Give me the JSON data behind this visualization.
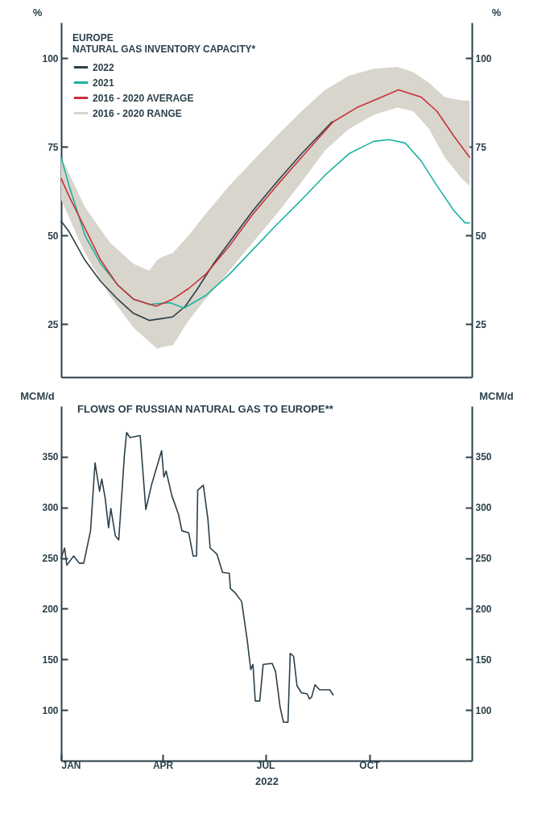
{
  "chart_data": [
    {
      "type": "line",
      "legend_title": "EUROPE\nNATURAL GAS INVENTORY CAPACITY*",
      "ylabel": "%",
      "y2label": "%",
      "xlim": [
        "2022-01-01",
        "2022-12-31"
      ],
      "ylim": [
        10,
        110
      ],
      "yticks": [
        25,
        50,
        75,
        100
      ],
      "y2lim": [
        10,
        110
      ],
      "y2ticks": [
        25,
        50,
        75,
        100
      ],
      "tick_labels": "y",
      "legend": "top left",
      "grid": false,
      "marker": "none",
      "line_style": "solid",
      "series": [
        {
          "name": "2022",
          "color": "#2b3f4a",
          "type": "line",
          "x": [
            "2022-01-01",
            "2022-01-08",
            "2022-01-22",
            "2022-02-05",
            "2022-02-20",
            "2022-03-06",
            "2022-03-20",
            "2022-03-31",
            "2022-04-10",
            "2022-04-21",
            "2022-05-02",
            "2022-05-16",
            "2022-05-30",
            "2022-06-20",
            "2022-07-11",
            "2022-08-02",
            "2022-08-29"
          ],
          "values": [
            54,
            51,
            43,
            37,
            32,
            28,
            26,
            26.5,
            27,
            30,
            35,
            42,
            48,
            57,
            65,
            73,
            82
          ]
        },
        {
          "name": "2021",
          "color": "#1bb39e",
          "type": "line",
          "x": [
            "2022-01-01",
            "2022-01-08",
            "2022-01-15",
            "2022-01-22",
            "2022-02-05",
            "2022-02-20",
            "2022-03-06",
            "2022-03-20",
            "2022-04-07",
            "2022-04-20",
            "2022-05-09",
            "2022-05-30",
            "2022-06-20",
            "2022-07-11",
            "2022-08-02",
            "2022-08-23",
            "2022-09-13",
            "2022-10-05",
            "2022-10-19",
            "2022-11-02",
            "2022-11-16",
            "2022-11-30",
            "2022-12-15",
            "2022-12-25",
            "2022-12-29"
          ],
          "values": [
            72,
            64,
            57,
            50,
            42,
            36,
            32,
            30.5,
            31,
            29.5,
            33,
            39,
            46,
            53,
            60,
            67,
            73,
            76.5,
            77,
            76,
            71,
            64,
            57,
            53.5,
            53.5
          ]
        },
        {
          "name": "2016 - 2020 AVERAGE",
          "color": "#c8323a",
          "type": "line",
          "x": [
            "2022-01-01",
            "2022-01-08",
            "2022-01-22",
            "2022-02-05",
            "2022-02-20",
            "2022-03-06",
            "2022-03-26",
            "2022-04-10",
            "2022-04-24",
            "2022-05-09",
            "2022-05-30",
            "2022-06-20",
            "2022-07-11",
            "2022-08-02",
            "2022-08-30",
            "2022-09-20",
            "2022-10-12",
            "2022-10-27",
            "2022-11-16",
            "2022-11-30",
            "2022-12-15",
            "2022-12-29"
          ],
          "values": [
            66,
            61,
            52,
            43,
            36,
            32,
            30,
            32,
            35,
            39,
            47,
            56,
            64,
            72,
            82,
            86,
            89,
            91,
            89,
            85,
            78,
            72
          ]
        },
        {
          "name": "2016 - 2020 RANGE",
          "color": "#d8d5cc",
          "type": "area",
          "values": [
            null,
            null,
            null,
            null,
            null,
            null,
            null,
            null,
            null,
            null,
            null,
            null,
            null,
            null,
            null,
            null,
            null,
            null,
            null,
            null,
            null,
            null,
            null
          ],
          "x": [
            "2022-01-01",
            "2022-01-22",
            "2022-02-13",
            "2022-03-06",
            "2022-03-20",
            "2022-03-27",
            "2022-04-01",
            "2022-04-10",
            "2022-04-24",
            "2022-05-09",
            "2022-05-30",
            "2022-06-20",
            "2022-07-11",
            "2022-08-02",
            "2022-08-23",
            "2022-09-13",
            "2022-10-05",
            "2022-10-26",
            "2022-11-09",
            "2022-11-23",
            "2022-12-07",
            "2022-12-22",
            "2022-12-29"
          ],
          "lower": [
            60,
            45,
            33,
            24,
            20,
            18,
            18.5,
            19,
            26,
            32,
            40,
            48,
            56,
            65,
            74,
            80,
            84,
            86,
            85,
            80,
            72,
            66,
            64
          ],
          "upper": [
            72,
            58,
            48,
            42,
            40,
            43,
            44,
            45,
            50,
            56,
            64,
            71,
            78,
            85,
            91,
            95,
            97,
            97.5,
            96,
            93,
            89,
            88,
            88
          ]
        }
      ]
    },
    {
      "type": "line",
      "title": "FLOWS OF RUSSIAN NATURAL GAS TO EUROPE**",
      "ylabel": "MCM/d",
      "y2label": "MCM/d",
      "xlabel": "2022",
      "xlim": [
        "2022-01-01",
        "2022-12-31"
      ],
      "xticks": [
        {
          "value": "2022-01-01",
          "label": "JAN"
        },
        {
          "value": "2022-04-01",
          "label": "APR"
        },
        {
          "value": "2022-07-01",
          "label": "JUL"
        },
        {
          "value": "2022-10-01",
          "label": "OCT"
        }
      ],
      "ylim": [
        50,
        400
      ],
      "yticks": [
        100,
        150,
        200,
        250,
        300,
        350
      ],
      "y2lim": [
        50,
        400
      ],
      "y2ticks": [
        100,
        150,
        200,
        250,
        300,
        350
      ],
      "grid": false,
      "marker": "none",
      "line_style": "solid",
      "series": [
        {
          "color": "#2b3f4a",
          "type": "line",
          "x": [
            "2022-01-01",
            "2022-01-04",
            "2022-01-06",
            "2022-01-12",
            "2022-01-17",
            "2022-01-21",
            "2022-01-27",
            "2022-01-31",
            "2022-02-04",
            "2022-02-06",
            "2022-02-09",
            "2022-02-12",
            "2022-02-14",
            "2022-02-18",
            "2022-02-21",
            "2022-02-26",
            "2022-02-28",
            "2022-03-03",
            "2022-03-12",
            "2022-03-17",
            "2022-03-22",
            "2022-03-31",
            "2022-04-02",
            "2022-04-04",
            "2022-04-09",
            "2022-04-15",
            "2022-04-18",
            "2022-04-24",
            "2022-04-28",
            "2022-05-01",
            "2022-05-02",
            "2022-05-07",
            "2022-05-11",
            "2022-05-13",
            "2022-05-19",
            "2022-05-24",
            "2022-05-30",
            "2022-05-31",
            "2022-06-04",
            "2022-06-10",
            "2022-06-15",
            "2022-06-18",
            "2022-06-20",
            "2022-06-22",
            "2022-06-26",
            "2022-06-29",
            "2022-07-07",
            "2022-07-10",
            "2022-07-14",
            "2022-07-17",
            "2022-07-21",
            "2022-07-23",
            "2022-07-26",
            "2022-07-29",
            "2022-08-02",
            "2022-08-07",
            "2022-08-09",
            "2022-08-11",
            "2022-08-14",
            "2022-08-18",
            "2022-08-27",
            "2022-08-30"
          ],
          "values": [
            250,
            260,
            243,
            252,
            245,
            245,
            277,
            344,
            316,
            328,
            309,
            280,
            299,
            272,
            268,
            351,
            374,
            369,
            371,
            298,
            322,
            356,
            330,
            336,
            312,
            293,
            277,
            275,
            252,
            252,
            317,
            322,
            289,
            260,
            254,
            236,
            235,
            220,
            216,
            207,
            168,
            140,
            145,
            109,
            109,
            145,
            146,
            138,
            103,
            88,
            88,
            156,
            153,
            124,
            117,
            116,
            111,
            113,
            125,
            120,
            120,
            115
          ]
        }
      ]
    }
  ]
}
